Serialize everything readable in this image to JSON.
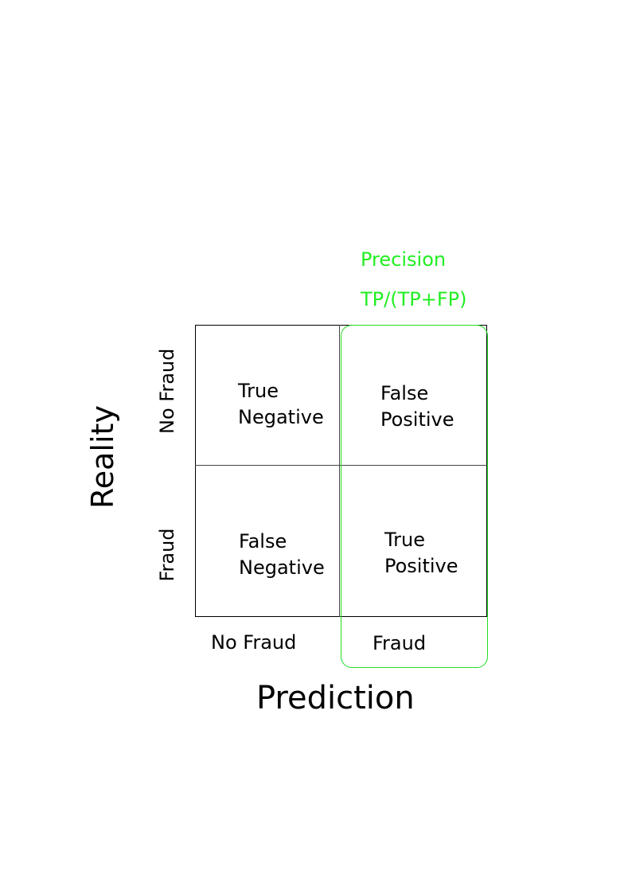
{
  "metric": {
    "name": "Precision",
    "formula": "TP/(TP+FP)",
    "color": "#22ee22"
  },
  "matrix": {
    "cells": {
      "tn": [
        "True",
        "Negative"
      ],
      "fp": [
        "False",
        "Positive"
      ],
      "fn": [
        "False",
        "Negative"
      ],
      "tp": [
        "True",
        "Positive"
      ]
    },
    "rows": [
      "No Fraud",
      "Fraud"
    ],
    "cols": [
      "No Fraud",
      "Fraud"
    ],
    "row_axis_label": "Reality",
    "col_axis_label": "Prediction"
  }
}
